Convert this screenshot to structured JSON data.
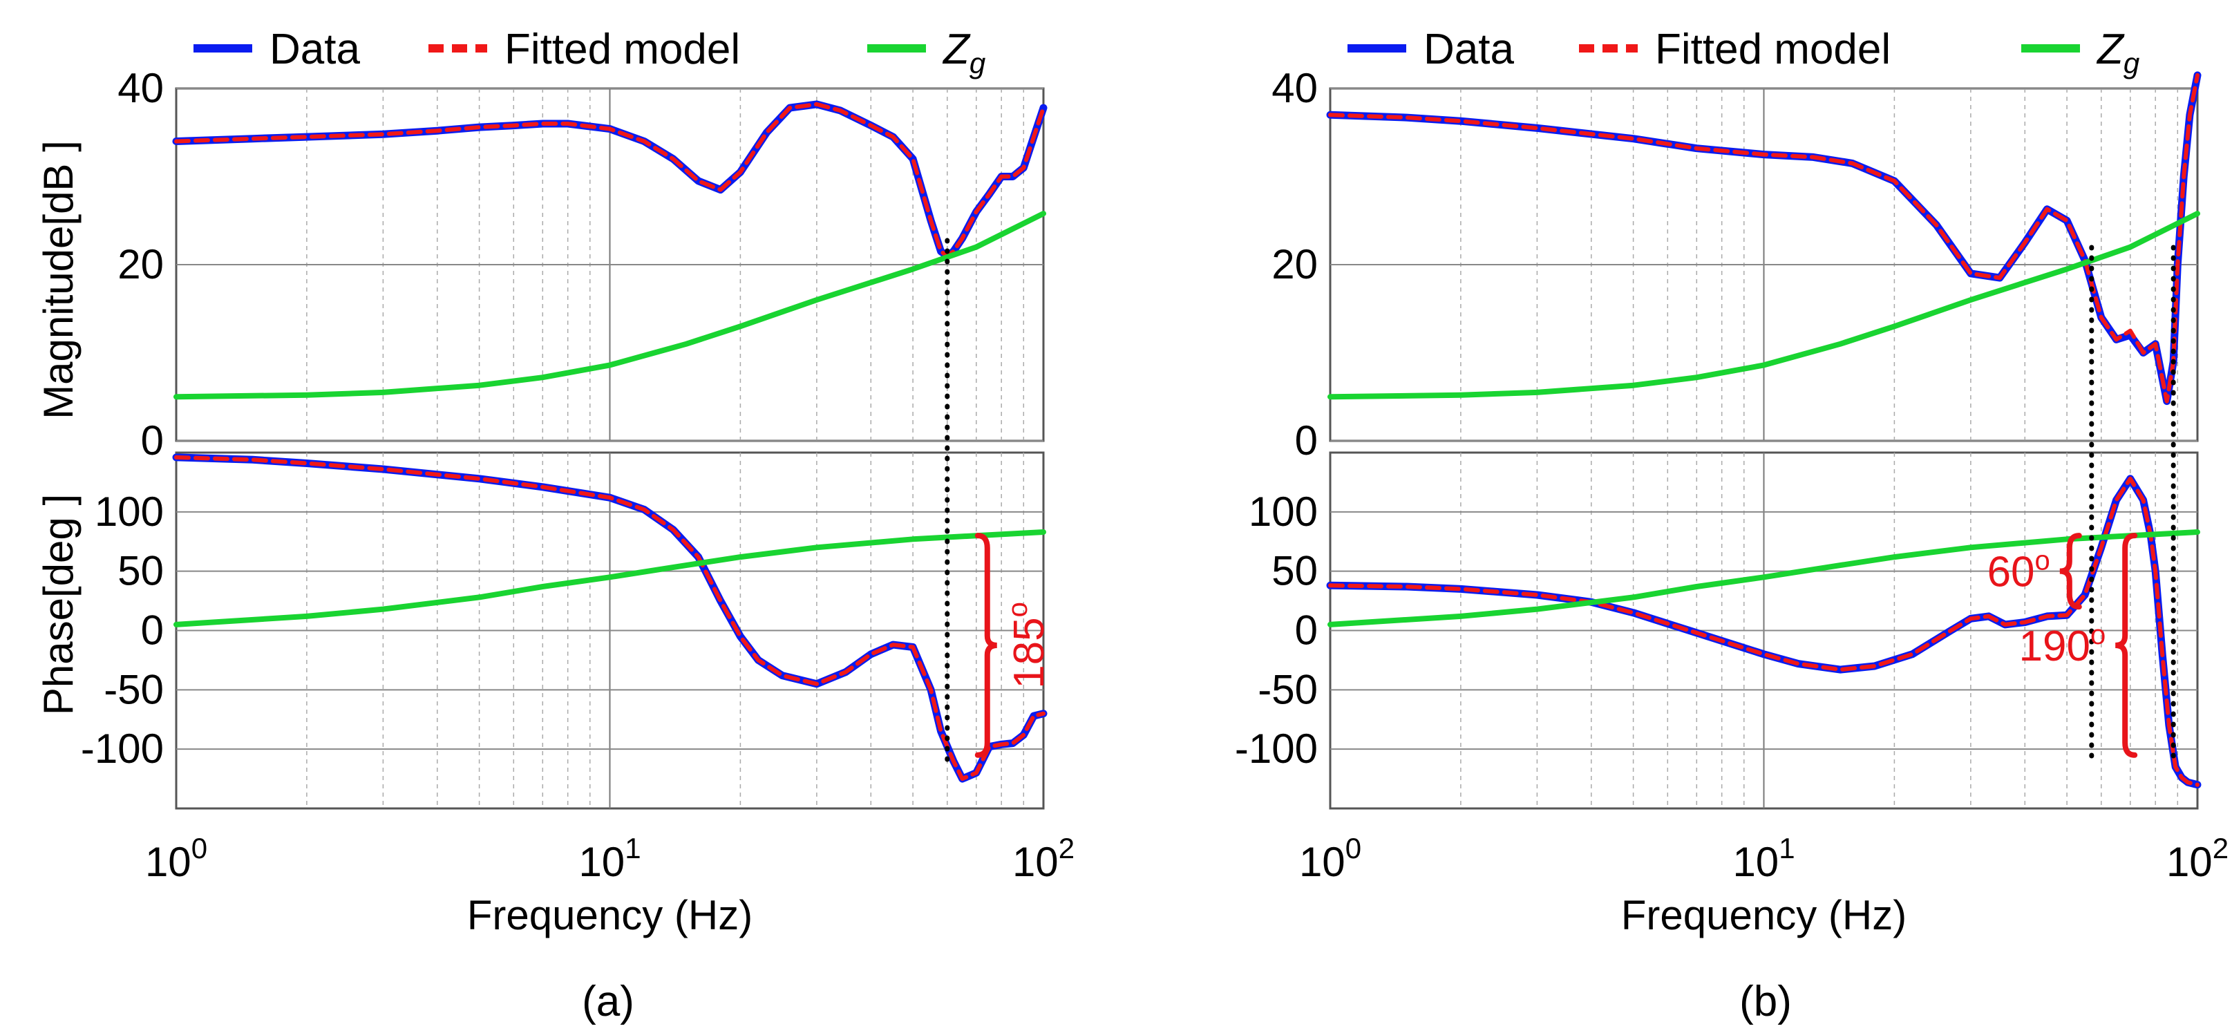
{
  "figure": {
    "panels": [
      {
        "caption": "(a)"
      },
      {
        "caption": "(b)"
      }
    ]
  },
  "legend": {
    "entries": [
      {
        "label": "Data",
        "color": "#0a1cf0",
        "style": "solid"
      },
      {
        "label": "Fitted model",
        "color": "#f01818",
        "style": "dashed"
      },
      {
        "label": "Z",
        "subscript": "g",
        "color": "#19d431",
        "style": "solid"
      }
    ]
  },
  "chart_data": [
    {
      "type": "line",
      "panel": "(a)",
      "xscale": "log",
      "xlim": [
        1,
        100
      ],
      "xlabel": "Frequency (Hz)",
      "xticks": [
        {
          "base": "10",
          "exp": "0"
        },
        {
          "base": "10",
          "exp": "1"
        },
        {
          "base": "10",
          "exp": "2"
        }
      ],
      "magnitude": {
        "ylabel": "Magnitude[dB ]",
        "ylim": [
          0,
          40
        ],
        "yticks": [
          "0",
          "20",
          "40"
        ],
        "series": [
          {
            "name": "Data",
            "x": [
              1,
              1.5,
              2,
              3,
              4,
              5,
              6,
              7,
              8,
              10,
              12,
              14,
              16,
              18,
              20,
              23,
              26,
              30,
              34,
              40,
              45,
              50,
              55,
              58,
              60,
              62,
              65,
              70,
              75,
              80,
              85,
              90,
              95,
              100
            ],
            "y": [
              34,
              34.3,
              34.5,
              34.8,
              35.2,
              35.6,
              35.8,
              36,
              36,
              35.4,
              34,
              32,
              29.5,
              28.5,
              30.5,
              35,
              37.8,
              38.2,
              37.5,
              35.8,
              34.5,
              32,
              25,
              21.5,
              21,
              21.5,
              23,
              26,
              28,
              30,
              30,
              31,
              34.5,
              37.8
            ]
          },
          {
            "name": "Fitted model",
            "x": [
              1,
              1.5,
              2,
              3,
              4,
              5,
              6,
              7,
              8,
              10,
              12,
              14,
              16,
              18,
              20,
              23,
              26,
              30,
              34,
              40,
              45,
              50,
              55,
              58,
              60,
              62,
              65,
              70,
              75,
              80,
              85,
              90,
              95,
              100
            ],
            "y": [
              34,
              34.3,
              34.5,
              34.8,
              35.2,
              35.6,
              35.8,
              36,
              36,
              35.4,
              34,
              32,
              29.5,
              28.5,
              30.5,
              35,
              37.8,
              38.2,
              37.5,
              35.8,
              34.5,
              32,
              25,
              21.5,
              21,
              21.5,
              23,
              26,
              28,
              30,
              30,
              31,
              34.5,
              37.8
            ]
          },
          {
            "name": "Zg",
            "x": [
              1,
              2,
              3,
              5,
              7,
              10,
              15,
              20,
              30,
              50,
              70,
              100
            ],
            "y": [
              5,
              5.2,
              5.5,
              6.3,
              7.2,
              8.6,
              11,
              13,
              16,
              19.5,
              22,
              25.8
            ]
          }
        ]
      },
      "phase": {
        "ylabel": "Phase[deg ]",
        "ylim": [
          -150,
          150
        ],
        "yticks": [
          "-100",
          "-50",
          "0",
          "50",
          "100"
        ],
        "series": [
          {
            "name": "Data",
            "x": [
              1,
              1.5,
              2,
              3,
              5,
              7,
              10,
              12,
              14,
              16,
              18,
              20,
              22,
              25,
              30,
              35,
              40,
              45,
              50,
              55,
              58,
              62,
              65,
              70,
              75,
              80,
              85,
              90,
              95,
              100
            ],
            "y": [
              146,
              144,
              141,
              136,
              128,
              121,
              112,
              102,
              85,
              62,
              25,
              -5,
              -25,
              -38,
              -45,
              -35,
              -20,
              -12,
              -14,
              -50,
              -85,
              -110,
              -125,
              -120,
              -98,
              -96,
              -95,
              -88,
              -72,
              -70
            ]
          },
          {
            "name": "Fitted model",
            "x": [
              1,
              1.5,
              2,
              3,
              5,
              7,
              10,
              12,
              14,
              16,
              18,
              20,
              22,
              25,
              30,
              35,
              40,
              45,
              50,
              55,
              58,
              62,
              65,
              70,
              75,
              80,
              85,
              90,
              95,
              100
            ],
            "y": [
              146,
              144,
              141,
              136,
              128,
              121,
              112,
              102,
              85,
              62,
              25,
              -5,
              -25,
              -38,
              -45,
              -35,
              -20,
              -12,
              -14,
              -50,
              -85,
              -110,
              -125,
              -120,
              -98,
              -96,
              -95,
              -88,
              -72,
              -70
            ]
          },
          {
            "name": "Zg",
            "x": [
              1,
              2,
              3,
              5,
              7,
              10,
              15,
              20,
              30,
              50,
              70,
              100
            ],
            "y": [
              5,
              12,
              18,
              28,
              37,
              45,
              55,
              62,
              70,
              77,
              80,
              83
            ]
          }
        ]
      },
      "annotations": [
        {
          "text": "185",
          "superscript": "o",
          "from": 80,
          "to": -105,
          "x": 66
        }
      ],
      "crossover_x": 60
    },
    {
      "type": "line",
      "panel": "(b)",
      "xscale": "log",
      "xlim": [
        1,
        100
      ],
      "xlabel": "Frequency (Hz)",
      "xticks": [
        {
          "base": "10",
          "exp": "0"
        },
        {
          "base": "10",
          "exp": "1"
        },
        {
          "base": "10",
          "exp": "2"
        }
      ],
      "magnitude": {
        "ylabel": "",
        "ylim": [
          0,
          40
        ],
        "yticks": [
          "0",
          "20",
          "40"
        ],
        "series": [
          {
            "name": "Data",
            "x": [
              1,
              1.5,
              2,
              3,
              5,
              7,
              10,
              13,
              16,
              20,
              25,
              30,
              35,
              40,
              45,
              50,
              55,
              60,
              65,
              70,
              75,
              80,
              85,
              88,
              90,
              93,
              96,
              100
            ],
            "y": [
              37,
              36.7,
              36.3,
              35.5,
              34.3,
              33.2,
              32.5,
              32.2,
              31.5,
              29.5,
              24.5,
              19,
              18.5,
              22.5,
              26.3,
              25,
              20.5,
              14,
              11.5,
              12,
              10,
              11,
              4.5,
              9,
              20,
              30,
              37,
              41.5
            ]
          },
          {
            "name": "Fitted model",
            "x": [
              1,
              1.5,
              2,
              3,
              5,
              7,
              10,
              13,
              16,
              20,
              25,
              30,
              35,
              40,
              45,
              50,
              55,
              60,
              65,
              70,
              75,
              80,
              85,
              88,
              90,
              93,
              96,
              100
            ],
            "y": [
              37,
              36.7,
              36.3,
              35.5,
              34.3,
              33.2,
              32.5,
              32.2,
              31.5,
              29.5,
              24.5,
              19,
              18.5,
              22.5,
              26.3,
              25,
              20.5,
              14,
              11.5,
              12.5,
              10,
              11,
              4.5,
              9,
              20,
              30,
              37,
              41.5
            ]
          },
          {
            "name": "Zg",
            "x": [
              1,
              2,
              3,
              5,
              7,
              10,
              15,
              20,
              30,
              50,
              70,
              100
            ],
            "y": [
              5,
              5.2,
              5.5,
              6.3,
              7.2,
              8.6,
              11,
              13,
              16,
              19.5,
              22,
              25.8
            ]
          }
        ]
      },
      "phase": {
        "ylabel": "",
        "ylim": [
          -150,
          150
        ],
        "yticks": [
          "-100",
          "-50",
          "0",
          "50",
          "100"
        ],
        "series": [
          {
            "name": "Data",
            "x": [
              1,
              1.5,
              2,
              3,
              4,
              5,
              7,
              10,
              12,
              15,
              18,
              22,
              27,
              30,
              33,
              36,
              40,
              45,
              50,
              55,
              60,
              65,
              70,
              75,
              78,
              80,
              83,
              86,
              89,
              92,
              95,
              100
            ],
            "y": [
              38,
              37,
              35,
              30,
              24,
              15,
              -2,
              -20,
              -28,
              -33,
              -30,
              -20,
              0,
              10,
              12,
              5,
              7,
              12,
              13,
              30,
              70,
              110,
              128,
              110,
              80,
              50,
              -20,
              -80,
              -115,
              -124,
              -128,
              -130
            ]
          },
          {
            "name": "Fitted model",
            "x": [
              1,
              1.5,
              2,
              3,
              4,
              5,
              7,
              10,
              12,
              15,
              18,
              22,
              27,
              30,
              33,
              36,
              40,
              45,
              50,
              55,
              60,
              65,
              70,
              75,
              78,
              80,
              83,
              86,
              89,
              92,
              95,
              100
            ],
            "y": [
              38,
              37,
              35,
              30,
              24,
              15,
              -2,
              -20,
              -28,
              -33,
              -30,
              -20,
              0,
              10,
              12,
              5,
              7,
              12,
              13,
              30,
              70,
              110,
              128,
              110,
              80,
              50,
              -20,
              -80,
              -115,
              -124,
              -128,
              -130
            ]
          },
          {
            "name": "Zg",
            "x": [
              1,
              2,
              3,
              5,
              7,
              10,
              15,
              20,
              30,
              50,
              70,
              100
            ],
            "y": [
              5,
              12,
              18,
              28,
              37,
              45,
              55,
              62,
              70,
              77,
              80,
              83
            ]
          }
        ]
      },
      "annotations": [
        {
          "text": "60",
          "superscript": "o",
          "from": 80,
          "to": 20,
          "x": 57
        },
        {
          "text": "190",
          "superscript": "o",
          "from": 80,
          "to": -105,
          "x": 80
        }
      ],
      "crossover_x": [
        57,
        88
      ]
    }
  ]
}
